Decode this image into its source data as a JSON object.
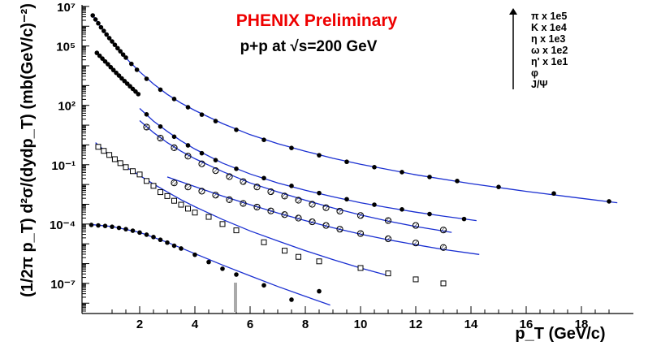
{
  "chart_data": {
    "type": "scatter",
    "title": "PHENIX Preliminary",
    "subtitle": "p+p at √s=200 GeV",
    "xlabel": "p_T (GeV/c)",
    "ylabel": "(1/2π p_T) d²σ/(dydp_T) (mb(GeV/c)⁻²)",
    "x_scale": "linear",
    "y_scale": "log",
    "xlim": [
      0.2,
      20
    ],
    "ylim": [
      3e-09,
      12000000.0
    ],
    "x_ticks": [
      2,
      4,
      6,
      8,
      10,
      12,
      14,
      16,
      18
    ],
    "y_ticks": [
      {
        "value": 1e-07,
        "label": "10⁻⁷"
      },
      {
        "value": 0.0001,
        "label": "10⁻⁴"
      },
      {
        "value": 0.1,
        "label": "10⁻¹"
      },
      {
        "value": 100.0,
        "label": "10²"
      },
      {
        "value": 100000.0,
        "label": "10⁵"
      },
      {
        "value": 10000000.0,
        "label": "10⁷"
      }
    ],
    "grid": false,
    "legend_position": "top-right",
    "legend": [
      "π x 1e5",
      "K x 1e4",
      "η x 1e3",
      "ω x 1e2",
      "η' x 1e1",
      "φ",
      "J/Ψ"
    ],
    "fit_color": "#1a2fd1",
    "marker_color": "#000000",
    "series": [
      {
        "name": "π x 1e5",
        "marker": "filled-circle",
        "points": [
          [
            0.3,
            3500000.0
          ],
          [
            0.4,
            2200000.0
          ],
          [
            0.5,
            1400000.0
          ],
          [
            0.6,
            880000.0
          ],
          [
            0.7,
            580000.0
          ],
          [
            0.8,
            380000.0
          ],
          [
            0.9,
            250000.0
          ],
          [
            1.0,
            170000.0
          ],
          [
            1.1,
            115000.0
          ],
          [
            1.2,
            78000.0
          ],
          [
            1.3,
            54000.0
          ],
          [
            1.4,
            37000.0
          ],
          [
            1.5,
            26000.0
          ],
          [
            1.7,
            12500.0
          ],
          [
            1.9,
            6300.0
          ],
          [
            2.25,
            2200.0
          ],
          [
            2.75,
            620
          ],
          [
            3.25,
            210
          ],
          [
            3.75,
            80
          ],
          [
            4.25,
            34
          ],
          [
            4.75,
            16
          ],
          [
            5.5,
            5.8
          ],
          [
            6.5,
            1.8
          ],
          [
            7.5,
            0.7
          ],
          [
            8.5,
            0.3
          ],
          [
            9.5,
            0.14
          ],
          [
            10.5,
            0.075
          ],
          [
            11.5,
            0.042
          ],
          [
            12.5,
            0.024
          ],
          [
            13.5,
            0.015
          ],
          [
            15,
            0.0075
          ],
          [
            17,
            0.0035
          ],
          [
            19,
            0.0014
          ]
        ],
        "fit": [
          [
            0.3,
            3600000.0
          ],
          [
            0.5,
            1400000.0
          ],
          [
            0.8,
            380000.0
          ],
          [
            1.2,
            78000.0
          ],
          [
            1.6,
            18000.0
          ],
          [
            2,
            5000.0
          ],
          [
            2.5,
            1200.0
          ],
          [
            3,
            360
          ],
          [
            3.5,
            130
          ],
          [
            4,
            55
          ],
          [
            5,
            12
          ],
          [
            6,
            3.3
          ],
          [
            7,
            1.15
          ],
          [
            8,
            0.48
          ],
          [
            9,
            0.21
          ],
          [
            10,
            0.105
          ],
          [
            12,
            0.031
          ],
          [
            14,
            0.011
          ],
          [
            16,
            0.0045
          ],
          [
            18,
            0.002
          ],
          [
            19.3,
            0.0012
          ]
        ]
      },
      {
        "name": "K x 1e4",
        "marker": "filled-circle",
        "points": [
          [
            0.45,
            45000.0
          ],
          [
            0.55,
            32000.0
          ],
          [
            0.65,
            23000.0
          ],
          [
            0.75,
            16500.0
          ],
          [
            0.85,
            12000.0
          ],
          [
            0.95,
            8500.0
          ],
          [
            1.05,
            6100.0
          ],
          [
            1.15,
            4400.0
          ],
          [
            1.25,
            3200.0
          ],
          [
            1.35,
            2300.0
          ],
          [
            1.45,
            1700.0
          ],
          [
            1.55,
            1250.0
          ],
          [
            1.65,
            920
          ],
          [
            1.75,
            680
          ],
          [
            1.85,
            500
          ],
          [
            1.95,
            370
          ]
        ],
        "fit": [
          [
            0.45,
            46000.0
          ],
          [
            0.8,
            14000.0
          ],
          [
            1.2,
            3600.0
          ],
          [
            1.6,
            1050.0
          ],
          [
            2,
            330
          ]
        ]
      },
      {
        "name": "η x 1e3",
        "marker": "filled-circle",
        "points": [
          [
            2.25,
            35
          ],
          [
            2.75,
            8.5
          ],
          [
            3.25,
            2.6
          ],
          [
            3.75,
            0.95
          ],
          [
            4.25,
            0.38
          ],
          [
            4.75,
            0.17
          ],
          [
            5.5,
            0.062
          ],
          [
            6.5,
            0.021
          ],
          [
            7.5,
            0.0085
          ],
          [
            8.5,
            0.0037
          ],
          [
            9.5,
            0.0018
          ],
          [
            10.5,
            0.00095
          ],
          [
            11.5,
            0.00055
          ],
          [
            12.5,
            0.00032
          ],
          [
            13.75,
            0.00018
          ]
        ],
        "fit": [
          [
            2.0,
            70
          ],
          [
            2.5,
            16
          ],
          [
            3,
            4.8
          ],
          [
            3.5,
            1.6
          ],
          [
            4,
            0.62
          ],
          [
            5,
            0.12
          ],
          [
            6,
            0.034
          ],
          [
            7,
            0.012
          ],
          [
            8,
            0.0051
          ],
          [
            9,
            0.0024
          ],
          [
            10,
            0.0012
          ],
          [
            11,
            0.00068
          ],
          [
            12,
            0.0004
          ],
          [
            13,
            0.00025
          ],
          [
            14.2,
            0.00015
          ]
        ]
      },
      {
        "name": "ω x 1e2",
        "marker": "hatched-circle",
        "points": [
          [
            2.25,
            8
          ],
          [
            2.75,
            2.2
          ],
          [
            3.25,
            0.72
          ],
          [
            3.75,
            0.27
          ],
          [
            4.25,
            0.11
          ],
          [
            4.75,
            0.05
          ],
          [
            5.25,
            0.025
          ],
          [
            5.75,
            0.014
          ],
          [
            6.25,
            0.0075
          ],
          [
            6.75,
            0.0043
          ],
          [
            7.25,
            0.0026
          ],
          [
            7.75,
            0.0016
          ],
          [
            8.25,
            0.001
          ],
          [
            8.75,
            0.00067
          ],
          [
            9.25,
            0.00045
          ],
          [
            10,
            0.00027
          ],
          [
            11,
            0.00015
          ],
          [
            12,
            8.5e-05
          ],
          [
            13,
            5e-05
          ]
        ],
        "fit": [
          [
            2.0,
            17
          ],
          [
            2.5,
            4.2
          ],
          [
            3,
            1.3
          ],
          [
            3.5,
            0.48
          ],
          [
            4,
            0.2
          ],
          [
            5,
            0.045
          ],
          [
            6,
            0.012
          ],
          [
            7,
            0.0042
          ],
          [
            8,
            0.0016
          ],
          [
            9,
            0.00065
          ],
          [
            10,
            0.00029
          ],
          [
            11,
            0.00014
          ],
          [
            12,
            7.5e-05
          ],
          [
            13.3,
            3.8e-05
          ]
        ]
      },
      {
        "name": "η' x 1e1",
        "marker": "hatched-circle",
        "points": [
          [
            3.25,
            0.012
          ],
          [
            3.75,
            0.0075
          ],
          [
            4.25,
            0.0046
          ],
          [
            4.75,
            0.0029
          ],
          [
            5.25,
            0.0017
          ],
          [
            5.75,
            0.0011
          ],
          [
            6.25,
            0.00072
          ],
          [
            6.75,
            0.00046
          ],
          [
            7.25,
            0.0003
          ],
          [
            7.75,
            0.0002
          ],
          [
            8.25,
            0.00013
          ],
          [
            8.75,
            8.5e-05
          ],
          [
            9.25,
            5.5e-05
          ],
          [
            10,
            3.3e-05
          ],
          [
            11,
            1.8e-05
          ],
          [
            12,
            1.1e-05
          ],
          [
            13,
            6.5e-06
          ]
        ],
        "fit": [
          [
            3.0,
            0.024
          ],
          [
            4,
            0.0078
          ],
          [
            5,
            0.0026
          ],
          [
            6,
            0.00095
          ],
          [
            7,
            0.00036
          ],
          [
            8,
            0.00015
          ],
          [
            9,
            6.5e-05
          ],
          [
            10,
            3.1e-05
          ],
          [
            11,
            1.6e-05
          ],
          [
            12,
            9e-06
          ],
          [
            13,
            5.2e-06
          ],
          [
            14.3,
            2.9e-06
          ]
        ]
      },
      {
        "name": "φ",
        "marker": "open-square",
        "points": [
          [
            0.5,
            0.8
          ],
          [
            0.7,
            0.5
          ],
          [
            0.9,
            0.31
          ],
          [
            1.1,
            0.19
          ],
          [
            1.3,
            0.12
          ],
          [
            1.5,
            0.075
          ],
          [
            1.75,
            0.047
          ],
          [
            2.0,
            0.032
          ],
          [
            2.25,
            0.015
          ],
          [
            2.5,
            0.0085
          ],
          [
            2.75,
            0.0041
          ],
          [
            3.0,
            0.0026
          ],
          [
            3.25,
            0.0015
          ],
          [
            3.5,
            0.00095
          ],
          [
            3.75,
            0.0006
          ],
          [
            4.0,
            0.00038
          ],
          [
            4.5,
            0.00023
          ],
          [
            5.0,
            0.0001
          ],
          [
            5.5,
            4.8e-05
          ],
          [
            6.5,
            1.2e-05
          ],
          [
            7.25,
            4.5e-06
          ],
          [
            7.75,
            2.2e-06
          ],
          [
            8.5,
            1.3e-06
          ],
          [
            10.0,
            6e-07
          ],
          [
            11.0,
            3.2e-07
          ],
          [
            12.0,
            1.6e-07
          ],
          [
            13.0,
            1e-07
          ]
        ],
        "fit": [
          [
            0.4,
            1.3
          ],
          [
            1,
            0.24
          ],
          [
            1.5,
            0.078
          ],
          [
            2,
            0.028
          ],
          [
            2.5,
            0.0105
          ],
          [
            3,
            0.0042
          ],
          [
            3.5,
            0.0017
          ],
          [
            4,
            0.00075
          ],
          [
            5,
            0.00017
          ],
          [
            6,
            4.5e-05
          ],
          [
            7,
            1.4e-05
          ],
          [
            8,
            4.5e-06
          ],
          [
            9,
            1.6e-06
          ],
          [
            10,
            6e-07
          ],
          [
            11,
            2.5e-07
          ]
        ]
      },
      {
        "name": "J/Ψ",
        "marker": "filled-circle",
        "points": [
          [
            0.25,
            9e-05
          ],
          [
            0.5,
            8.5e-05
          ],
          [
            0.75,
            8e-05
          ],
          [
            1.0,
            7.3e-05
          ],
          [
            1.25,
            6.4e-05
          ],
          [
            1.5,
            5.5e-05
          ],
          [
            1.75,
            4.6e-05
          ],
          [
            2.0,
            3.7e-05
          ],
          [
            2.25,
            2.9e-05
          ],
          [
            2.5,
            2.2e-05
          ],
          [
            2.75,
            1.6e-05
          ],
          [
            3.0,
            1.15e-05
          ],
          [
            3.25,
            8e-06
          ],
          [
            3.5,
            5.8e-06
          ],
          [
            4.0,
            2.8e-06
          ],
          [
            4.5,
            1.2e-06
          ],
          [
            5.0,
            5.5e-07
          ],
          [
            5.5,
            2.8e-07
          ],
          [
            6.5,
            8e-08
          ],
          [
            7.5,
            1.5e-08
          ],
          [
            8.5,
            4e-08
          ]
        ],
        "fit": [
          [
            0.2,
            9.6e-05
          ],
          [
            1,
            7.5e-05
          ],
          [
            2,
            3.8e-05
          ],
          [
            3,
            1.2e-05
          ],
          [
            4,
            3.2e-06
          ],
          [
            5,
            8.5e-07
          ],
          [
            6,
            2.4e-07
          ],
          [
            7,
            7e-08
          ],
          [
            8,
            2.2e-08
          ],
          [
            8.9,
            8e-09
          ]
        ]
      }
    ]
  }
}
